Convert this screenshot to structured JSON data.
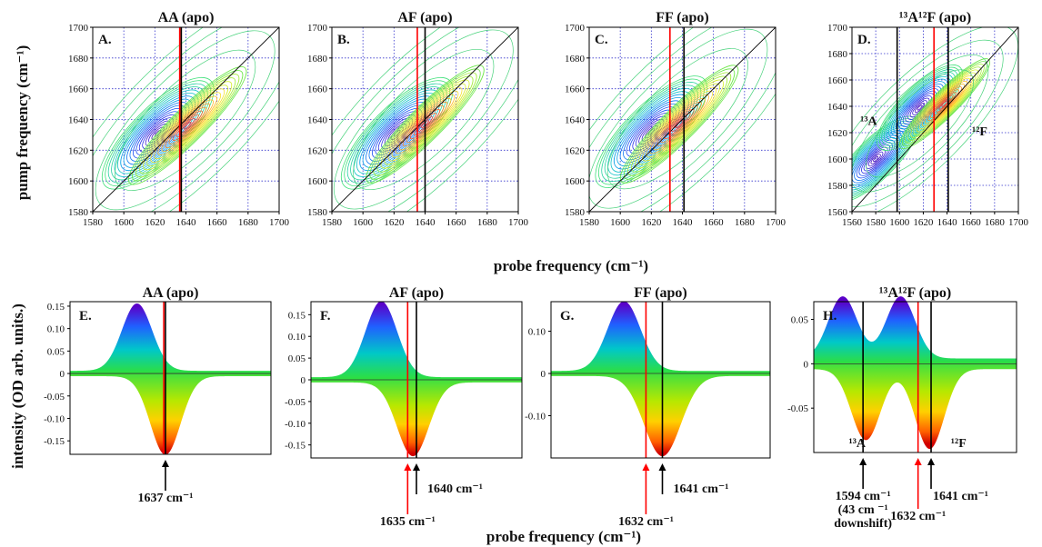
{
  "figure": {
    "top_xlabel": "probe frequency (cm⁻¹)",
    "top_ylabel": "pump frequency (cm⁻¹)",
    "bottom_xlabel": "probe frequency (cm⁻¹)",
    "bottom_ylabel": "intensity (OD  arb. units.)"
  },
  "colors": {
    "red_line": "#ff0000",
    "black_line": "#000000",
    "grid": "#3333cc"
  },
  "chart_data": [
    {
      "id": "A",
      "type": "contour",
      "title": "AA (apo)",
      "label": "A.",
      "xlim": [
        1580,
        1700
      ],
      "ylim": [
        1580,
        1700
      ],
      "xticks": [
        1580,
        1600,
        1620,
        1640,
        1660,
        1680,
        1700
      ],
      "yticks": [
        1580,
        1600,
        1620,
        1640,
        1660,
        1680,
        1700
      ],
      "neg_peak": [
        1622,
        1631
      ],
      "pos_peak": [
        1641,
        1636
      ],
      "red_line": 1636,
      "black_line": 1637,
      "annotations": []
    },
    {
      "id": "B",
      "type": "contour",
      "title": "AF (apo)",
      "label": "B.",
      "xlim": [
        1580,
        1700
      ],
      "ylim": [
        1580,
        1700
      ],
      "xticks": [
        1580,
        1600,
        1620,
        1640,
        1660,
        1680,
        1700
      ],
      "yticks": [
        1580,
        1600,
        1620,
        1640,
        1660,
        1680,
        1700
      ],
      "neg_peak": [
        1622,
        1631
      ],
      "pos_peak": [
        1640,
        1637
      ],
      "red_line": 1635,
      "black_line": 1640,
      "annotations": []
    },
    {
      "id": "C",
      "type": "contour",
      "title": "FF (apo)",
      "label": "C.",
      "xlim": [
        1580,
        1700
      ],
      "ylim": [
        1580,
        1700
      ],
      "xticks": [
        1580,
        1600,
        1620,
        1640,
        1660,
        1680,
        1700
      ],
      "yticks": [
        1580,
        1600,
        1620,
        1640,
        1660,
        1680,
        1700
      ],
      "neg_peak": [
        1620,
        1632
      ],
      "pos_peak": [
        1638,
        1637
      ],
      "red_line": 1632,
      "black_line": 1641,
      "annotations": []
    },
    {
      "id": "D",
      "type": "contour",
      "title": "¹³A¹²F (apo)",
      "label": "D.",
      "xlim": [
        1560,
        1700
      ],
      "ylim": [
        1560,
        1700
      ],
      "xticks": [
        1560,
        1580,
        1600,
        1620,
        1640,
        1660,
        1680,
        1700
      ],
      "yticks": [
        1560,
        1580,
        1600,
        1620,
        1640,
        1660,
        1680,
        1700
      ],
      "neg_peak": [
        1580,
        1600
      ],
      "neg_peak2": [
        1617,
        1639
      ],
      "pos_peak": [
        1638,
        1642
      ],
      "red_line": 1629,
      "black_line": 1641,
      "black_line2": 1598,
      "annotations": [
        {
          "text": "¹³A",
          "x": 1567,
          "y": 1626
        },
        {
          "text": "¹²F",
          "x": 1661,
          "y": 1618
        }
      ]
    },
    {
      "id": "E",
      "type": "area",
      "title": "AA (apo)",
      "label": "E.",
      "xlim": [
        1580,
        1700
      ],
      "ylim": [
        -0.18,
        0.16
      ],
      "yticks": [
        0.15,
        0.1,
        0.05,
        0,
        -0.05,
        -0.1,
        -0.15
      ],
      "ytick_labels": [
        "0.15",
        "0.10",
        "0.05",
        "0",
        "-0.05",
        "-0.10",
        "-0.15"
      ],
      "pos": {
        "center": 1620,
        "width": 9,
        "amp": 0.15
      },
      "neg": {
        "center": 1637,
        "width": 9,
        "amp": -0.175
      },
      "red_line": 1636,
      "black_line": 1637,
      "arrows": [
        {
          "color": "black",
          "x": 1637,
          "label": "1637 cm⁻¹"
        }
      ]
    },
    {
      "id": "F",
      "type": "area",
      "title": "AF (apo)",
      "label": "F.",
      "xlim": [
        1580,
        1700
      ],
      "ylim": [
        -0.18,
        0.18
      ],
      "yticks": [
        0.15,
        0.1,
        0.05,
        0,
        -0.05,
        -0.1,
        -0.15
      ],
      "ytick_labels": [
        "0.15",
        "0.10",
        "0.05",
        "0",
        "-0.05",
        "-0.10",
        "-0.15"
      ],
      "pos": {
        "center": 1620,
        "width": 9,
        "amp": 0.175
      },
      "neg": {
        "center": 1638,
        "width": 9,
        "amp": -0.17
      },
      "red_line": 1635,
      "black_line": 1640,
      "arrows": [
        {
          "color": "red",
          "x": 1635,
          "label": "1635 cm⁻¹"
        },
        {
          "color": "black",
          "x": 1640,
          "label": "1640 cm⁻¹"
        }
      ]
    },
    {
      "id": "G",
      "type": "area",
      "title": "FF (apo)",
      "label": "G.",
      "xlim": [
        1580,
        1700
      ],
      "ylim": [
        -0.2,
        0.17
      ],
      "yticks": [
        0.1,
        0,
        -0.1
      ],
      "ytick_labels": [
        "0.10",
        "0",
        "-0.10"
      ],
      "pos": {
        "center": 1620,
        "width": 9,
        "amp": 0.165
      },
      "neg": {
        "center": 1641,
        "width": 10,
        "amp": -0.19
      },
      "red_line": 1632,
      "black_line": 1641,
      "arrows": [
        {
          "color": "red",
          "x": 1632,
          "label": "1632 cm⁻¹"
        },
        {
          "color": "black",
          "x": 1641,
          "label": "1641 cm⁻¹"
        }
      ]
    },
    {
      "id": "H",
      "type": "area",
      "title": "¹³A¹²F (apo)",
      "label": "H.",
      "xlim": [
        1560,
        1700
      ],
      "ylim": [
        -0.1,
        0.07
      ],
      "yticks": [
        0.05,
        0,
        -0.05
      ],
      "ytick_labels": [
        "0.05",
        "0",
        "-0.05"
      ],
      "pos": {
        "center": 1580,
        "width": 10,
        "amp": 0.07
      },
      "pos2": {
        "center": 1620,
        "width": 10,
        "amp": 0.07
      },
      "neg": {
        "center": 1596,
        "width": 10,
        "amp": -0.08
      },
      "neg2": {
        "center": 1640,
        "width": 10,
        "amp": -0.09
      },
      "red_line": 1632,
      "black_line": 1641,
      "black_line2": 1594,
      "peak_labels": [
        {
          "text": "¹³A",
          "x": 1590
        },
        {
          "text": "¹²F",
          "x": 1660
        }
      ],
      "arrows": [
        {
          "color": "black",
          "x": 1594,
          "label": "1594 cm⁻¹",
          "sub": [
            "(43 cm ⁻¹",
            "downshift)"
          ]
        },
        {
          "color": "red",
          "x": 1632,
          "label": "1632 cm⁻¹"
        },
        {
          "color": "black",
          "x": 1641,
          "label": "1641 cm⁻¹"
        }
      ]
    }
  ]
}
